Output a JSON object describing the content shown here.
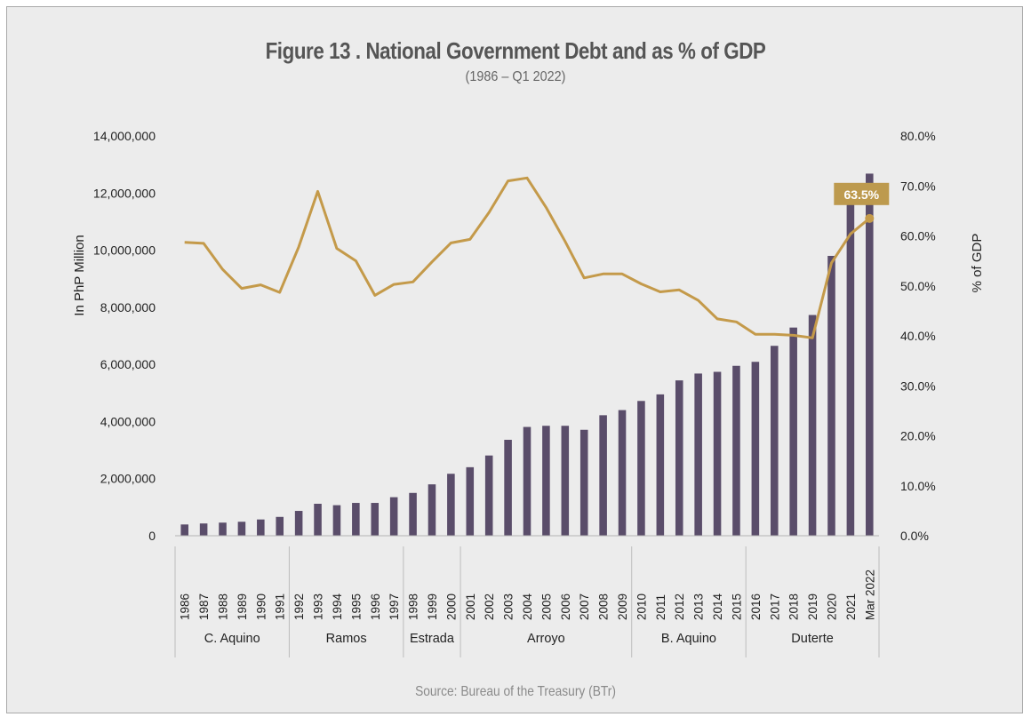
{
  "page": {
    "title": "Figure 13 . National Government Debt and as % of GDP",
    "subtitle": "(1986 – Q1 2022)",
    "source": "Source: Bureau of the Treasury (BTr)"
  },
  "colors": {
    "bars": "#5a4d6a",
    "line": "#c49a4a",
    "callout_bg": "#bd9a4e",
    "callout_text": "#ffffff",
    "axis_text": "#222222"
  },
  "chart_data": {
    "type": "bar",
    "title": "Figure 13 . National Government Debt and as % of GDP",
    "subtitle": "(1986 – Q1 2022)",
    "ylabel": "In PhP Million",
    "y2label": "% of GDP",
    "ylim": [
      0,
      14000000
    ],
    "y2lim": [
      0,
      80
    ],
    "y_ticks": [
      "0",
      "2,000,000",
      "4,000,000",
      "6,000,000",
      "8,000,000",
      "10,000,000",
      "12,000,000",
      "14,000,000"
    ],
    "y2_ticks": [
      "0.0%",
      "10.0%",
      "20.0%",
      "30.0%",
      "40.0%",
      "50.0%",
      "60.0%",
      "70.0%",
      "80.0%"
    ],
    "categories": [
      "1986",
      "1987",
      "1988",
      "1989",
      "1990",
      "1991",
      "1992",
      "1993",
      "1994",
      "1995",
      "1996",
      "1997",
      "1998",
      "1999",
      "2000",
      "2001",
      "2002",
      "2003",
      "2004",
      "2005",
      "2006",
      "2007",
      "2008",
      "2009",
      "2010",
      "2011",
      "2012",
      "2013",
      "2014",
      "2015",
      "2016",
      "2017",
      "2018",
      "2019",
      "2020",
      "2021",
      "Mar 2022"
    ],
    "groups": [
      {
        "label": "C. Aquino",
        "count": 6
      },
      {
        "label": "Ramos",
        "count": 6
      },
      {
        "label": "Estrada",
        "count": 3
      },
      {
        "label": "Arroyo",
        "count": 9
      },
      {
        "label": "B. Aquino",
        "count": 6
      },
      {
        "label": "Duterte",
        "count": 7
      }
    ],
    "series": [
      {
        "type": "bar",
        "axis": "left",
        "values": [
          395000,
          430000,
          460000,
          490000,
          570000,
          660000,
          870000,
          1120000,
          1070000,
          1150000,
          1150000,
          1350000,
          1500000,
          1800000,
          2170000,
          2400000,
          2810000,
          3360000,
          3810000,
          3850000,
          3850000,
          3710000,
          4220000,
          4400000,
          4720000,
          4950000,
          5440000,
          5680000,
          5740000,
          5950000,
          6090000,
          6650000,
          7290000,
          7730000,
          9800000,
          11730000,
          12680000
        ]
      },
      {
        "type": "line",
        "axis": "right",
        "values": [
          58.7,
          58.5,
          53.3,
          49.5,
          50.2,
          48.7,
          57.8,
          68.9,
          57.5,
          55.0,
          48.1,
          50.3,
          50.8,
          54.8,
          58.6,
          59.3,
          64.7,
          71.0,
          71.6,
          65.7,
          58.9,
          51.6,
          52.4,
          52.4,
          50.4,
          48.8,
          49.2,
          47.1,
          43.4,
          42.8,
          40.3,
          40.3,
          40.1,
          39.6,
          54.6,
          60.4,
          63.5
        ]
      }
    ],
    "callout": "63.5%",
    "legend": "none",
    "grid": false
  }
}
